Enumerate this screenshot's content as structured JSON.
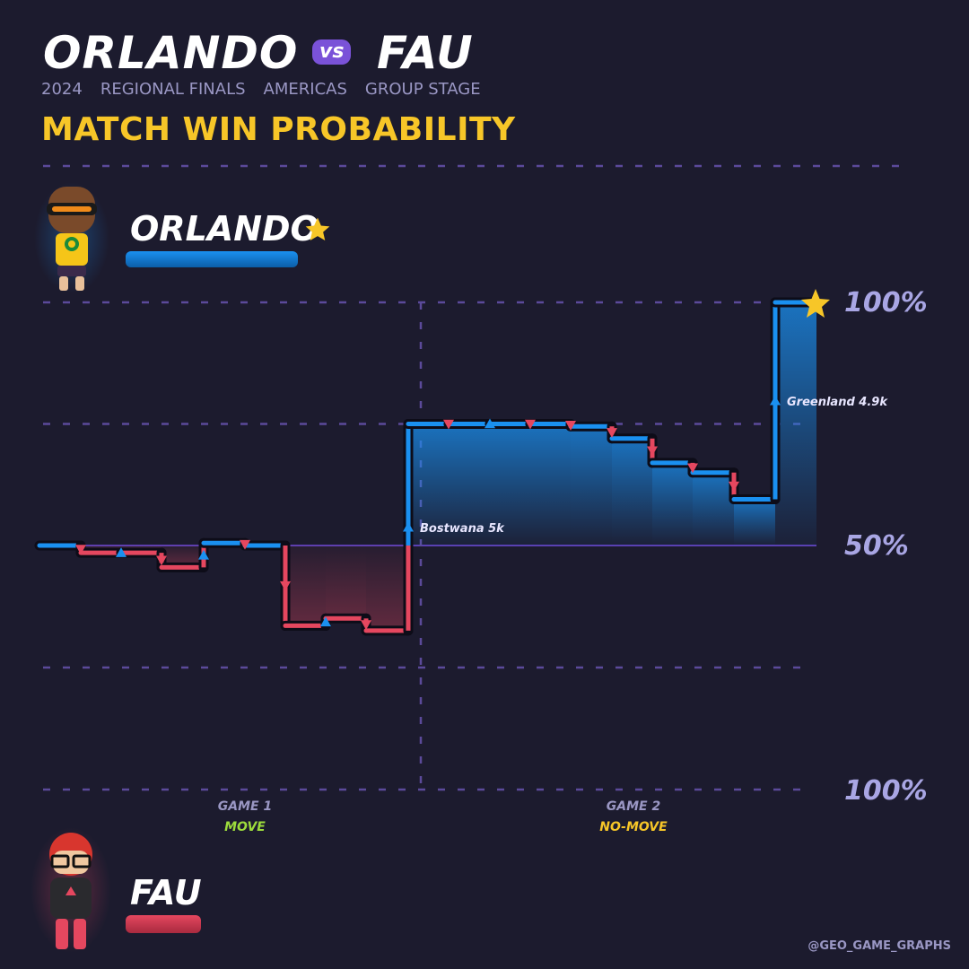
{
  "header": {
    "team_a": "ORLANDO",
    "vs": "vs",
    "team_b": "FAU",
    "year": "2024",
    "event": "REGIONAL FINALS",
    "region": "AMERICAS",
    "stage": "GROUP STAGE",
    "title": "MATCH WIN PROBABILITY"
  },
  "teams": {
    "top": {
      "name": "ORLANDO",
      "color": "#1a90f0",
      "winner_icon": "star-icon"
    },
    "bottom": {
      "name": "FAU",
      "color": "#e5475f"
    }
  },
  "axis": {
    "top_label": "100%",
    "mid_label": "50%",
    "bottom_label": "100%"
  },
  "games": [
    {
      "label": "GAME 1",
      "tag": "MOVE",
      "tag_color": "#9ddc3c"
    },
    {
      "label": "GAME 2",
      "tag": "NO-MOVE",
      "tag_color": "#f7c628"
    }
  ],
  "annotations": [
    {
      "text": "Bostwana 5k"
    },
    {
      "text": "Greenland 4.9k"
    }
  ],
  "footer": "@GEO_GAME_GRAPHS",
  "colors": {
    "background": "#1c1b2e",
    "orlando": "#1a90f0",
    "fau": "#e5475f",
    "grid": "#5b4a9a",
    "title": "#f7c628"
  },
  "chart_data": {
    "type": "line",
    "step": true,
    "ylabel": "",
    "ylim": [
      -100,
      100
    ],
    "y_meaning": "win probability advantage: +100 = ORLANDO 100%, 0 = 50%, -100 = FAU 100%",
    "games": [
      "GAME 1",
      "GAME 2"
    ],
    "series": [
      {
        "name": "ORLANDO",
        "points": [
          {
            "round": 0,
            "y": 0
          },
          {
            "round": 1,
            "y": -3
          },
          {
            "round": 2,
            "y": -3
          },
          {
            "round": 3,
            "y": -9
          },
          {
            "round": 4,
            "y": 1
          },
          {
            "round": 5,
            "y": 0
          },
          {
            "round": 6,
            "y": -33
          },
          {
            "round": 7,
            "y": -30
          },
          {
            "round": 8,
            "y": -35
          },
          {
            "round": 9,
            "y": 50
          },
          {
            "round": 10,
            "y": 50
          },
          {
            "round": 11,
            "y": 50
          },
          {
            "round": 12,
            "y": 50
          },
          {
            "round": 13,
            "y": 49
          },
          {
            "round": 14,
            "y": 44
          },
          {
            "round": 15,
            "y": 34
          },
          {
            "round": 16,
            "y": 30
          },
          {
            "round": 17,
            "y": 19
          },
          {
            "round": 18,
            "y": 100
          }
        ],
        "round_winner": [
          "",
          "FAU",
          "ORLANDO",
          "FAU",
          "ORLANDO",
          "FAU",
          "FAU",
          "ORLANDO",
          "FAU",
          "ORLANDO",
          "FAU",
          "ORLANDO",
          "FAU",
          "FAU",
          "FAU",
          "FAU",
          "FAU",
          "FAU",
          "ORLANDO"
        ],
        "game_break_after_round": 8
      }
    ]
  }
}
